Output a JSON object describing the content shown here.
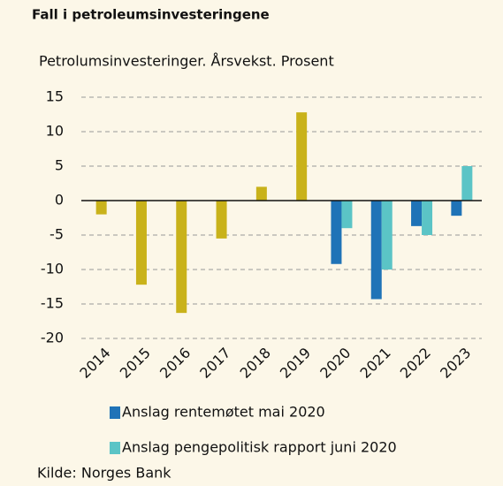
{
  "chart_data": {
    "type": "bar",
    "title": "Fall i petroleumsinvesteringene",
    "subtitle": "Petrolumsinvesteringer. Årsvekst. Prosent",
    "source": "Kilde: Norges Bank",
    "categories": [
      "2014",
      "2015",
      "2016",
      "2017",
      "2018",
      "2019",
      "2020",
      "2021",
      "2022",
      "2023"
    ],
    "series": [
      {
        "color": "#c9b21a",
        "values": [
          -2,
          -12.2,
          -16.3,
          -5.5,
          2,
          12.8,
          null,
          null,
          null,
          null
        ]
      },
      {
        "name": "Anslag rentemøtet mai 2020",
        "color": "#1f73b7",
        "values": [
          null,
          null,
          null,
          null,
          null,
          null,
          -9.2,
          -14.3,
          -3.7,
          -2.2
        ]
      },
      {
        "name": "Anslag pengepolitisk rapport juni 2020",
        "color": "#5bc4c6",
        "values": [
          null,
          null,
          null,
          null,
          null,
          null,
          -4,
          -10,
          -5,
          5
        ]
      }
    ],
    "ylim": [
      -20,
      15
    ],
    "yticks": [
      -20,
      -15,
      -10,
      -5,
      0,
      5,
      10,
      15
    ],
    "grid": true
  }
}
